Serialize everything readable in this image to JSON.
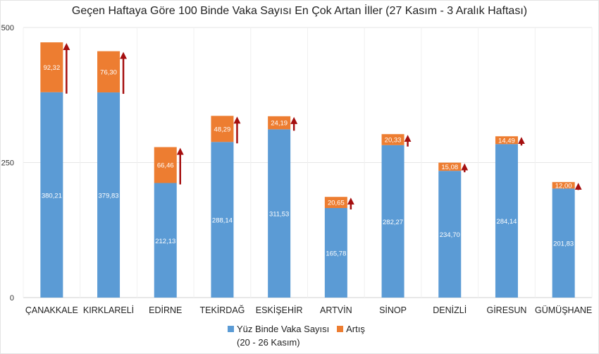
{
  "chart_data": {
    "type": "bar",
    "stacked": true,
    "title": "Geçen Haftaya Göre 100 Binde Vaka Sayısı En Çok Artan İller (27 Kasım - 3 Aralık Haftası)",
    "categories": [
      "ÇANAKKALE",
      "KIRKLARELİ",
      "EDİRNE",
      "TEKİRDAĞ",
      "ESKİŞEHİR",
      "ARTVİN",
      "SİNOP",
      "DENİZLİ",
      "GİRESUN",
      "GÜMÜŞHANE"
    ],
    "series": [
      {
        "name": "Yüz Binde Vaka Sayısı (20 - 26 Kasım)",
        "color": "#5b9bd5",
        "values": [
          380.21,
          379.83,
          212.13,
          288.14,
          311.53,
          165.78,
          282.27,
          234.7,
          284.14,
          201.83
        ],
        "labels": [
          "380,21",
          "379,83",
          "212,13",
          "288,14",
          "311,53",
          "165,78",
          "282,27",
          "234,70",
          "284,14",
          "201,83"
        ]
      },
      {
        "name": "Artış",
        "color": "#ed7d31",
        "values": [
          92.32,
          76.3,
          66.46,
          48.29,
          24.19,
          20.65,
          20.33,
          15.08,
          14.49,
          12.0
        ],
        "labels": [
          "92,32",
          "76,30",
          "66,46",
          "48,29",
          "24,19",
          "20,65",
          "20,33",
          "15,08",
          "14,49",
          "12,00"
        ]
      }
    ],
    "yticks": [
      "0",
      "250",
      "500"
    ],
    "ylim": [
      0,
      500
    ],
    "grid": true,
    "arrow_color": "#a50f0f",
    "legend_position": "bottom"
  },
  "legend": {
    "series1_line1": "Yüz Binde Vaka Sayısı",
    "series1_line2": "(20 - 26 Kasım)",
    "series2": "Artış"
  }
}
